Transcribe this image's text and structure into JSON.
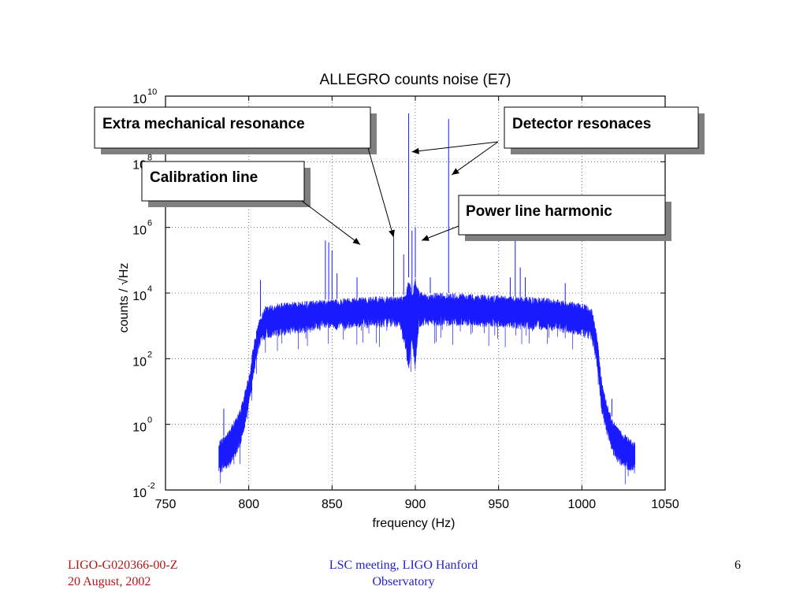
{
  "chart_data": {
    "type": "line",
    "title": "ALLEGRO counts noise (E7)",
    "xlabel": "frequency (Hz)",
    "ylabel": "counts / √Hz",
    "xlim": [
      750,
      1050
    ],
    "ylim_exponents": [
      -2,
      10
    ],
    "yscale": "log",
    "grid": true,
    "xticks": [
      "750",
      "800",
      "850",
      "900",
      "950",
      "1000",
      "1050"
    ],
    "yticks": [
      {
        "base": "10",
        "exp": "-2"
      },
      {
        "base": "10",
        "exp": "0"
      },
      {
        "base": "10",
        "exp": "2"
      },
      {
        "base": "10",
        "exp": "4"
      },
      {
        "base": "10",
        "exp": "6"
      },
      {
        "base": "10",
        "exp": "8"
      },
      {
        "base": "10",
        "exp": "10"
      }
    ],
    "series_color": "#1a1aff",
    "noise_floor": {
      "x": [
        782,
        786,
        790,
        795,
        800,
        803,
        806,
        810,
        820,
        840,
        860,
        880,
        890,
        894,
        896,
        898,
        900,
        902,
        906,
        920,
        940,
        960,
        980,
        1000,
        1006,
        1009,
        1012,
        1016,
        1020,
        1024,
        1028,
        1032
      ],
      "upper": [
        0.3,
        0.5,
        1,
        3,
        30,
        300,
        1500,
        4000,
        5000,
        6000,
        7000,
        8000,
        8000,
        9000,
        30000,
        10000,
        30000,
        12000,
        10000,
        10000,
        9000,
        8000,
        7000,
        5000,
        3500,
        600,
        20,
        3,
        1,
        0.6,
        0.4,
        0.3
      ],
      "lower": [
        0.03,
        0.04,
        0.06,
        0.2,
        3,
        30,
        200,
        400,
        500,
        700,
        800,
        900,
        900,
        200,
        40,
        300,
        40,
        900,
        1000,
        1000,
        900,
        800,
        700,
        500,
        350,
        60,
        2,
        0.3,
        0.08,
        0.05,
        0.04,
        0.03
      ]
    },
    "peaks": [
      {
        "x": 785,
        "y": 3
      },
      {
        "x": 807,
        "y": 25000
      },
      {
        "x": 846,
        "y": 400000
      },
      {
        "x": 848,
        "y": 350000
      },
      {
        "x": 850,
        "y": 200000
      },
      {
        "x": 853,
        "y": 40000
      },
      {
        "x": 865,
        "y": 30000
      },
      {
        "x": 887,
        "y": 500000
      },
      {
        "x": 893,
        "y": 150000
      },
      {
        "x": 896,
        "y": 3000000000
      },
      {
        "x": 898,
        "y": 800000
      },
      {
        "x": 900,
        "y": 1000000
      },
      {
        "x": 909,
        "y": 30000
      },
      {
        "x": 920,
        "y": 2000000000
      },
      {
        "x": 957,
        "y": 30000
      },
      {
        "x": 960,
        "y": 500000
      },
      {
        "x": 963,
        "y": 60000
      },
      {
        "x": 966,
        "y": 30000
      },
      {
        "x": 990,
        "y": 20000
      },
      {
        "x": 1018,
        "y": 6
      }
    ],
    "annotations": [
      {
        "text": "Extra mechanical resonance",
        "x": 887,
        "y": 500000
      },
      {
        "text": "Detector resonaces",
        "x": 896,
        "y": 200000000
      },
      {
        "text": "Detector resonaces",
        "x": 920,
        "y": 40000000
      },
      {
        "text": "Calibration line",
        "x": 865,
        "y": 300000
      },
      {
        "text": "Power line harmonic",
        "x": 900,
        "y": 400000
      }
    ]
  },
  "callouts": {
    "extra_mechanical": "Extra mechanical resonance",
    "detector": "Detector resonaces",
    "calibration": "Calibration line",
    "power_line": "Power line harmonic"
  },
  "footer": {
    "doc_id": "LIGO-G020366-00-Z",
    "date": "20 August, 2002",
    "meeting_line1": "LSC meeting, LIGO Hanford",
    "meeting_line2": "Observatory",
    "page_number": "6"
  }
}
